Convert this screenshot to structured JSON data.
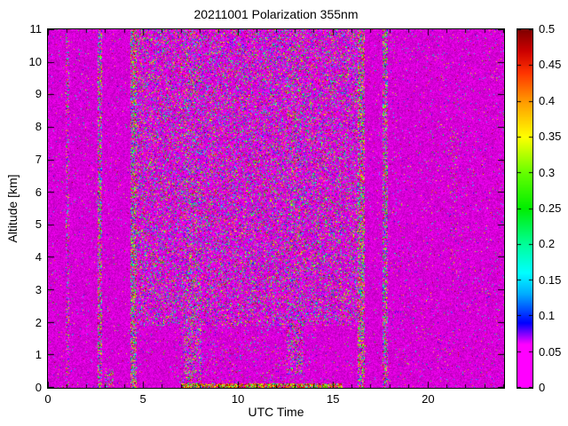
{
  "chart_data": {
    "type": "heatmap",
    "title": "20211001 Polarization 355nm",
    "xlabel": "UTC Time",
    "ylabel": "Altitude [km]",
    "xlim": [
      0,
      24
    ],
    "ylim": [
      0,
      11
    ],
    "xticks": [
      0,
      5,
      10,
      15,
      20
    ],
    "xminor_step": 1,
    "yticks": [
      0,
      1,
      2,
      3,
      4,
      5,
      6,
      7,
      8,
      9,
      10,
      11
    ],
    "colorbar": {
      "min": 0,
      "max": 0.5,
      "ticks": [
        0,
        0.05,
        0.1,
        0.15,
        0.2,
        0.25,
        0.3,
        0.35,
        0.4,
        0.45,
        0.5
      ],
      "tick_labels": [
        "0",
        "0.05",
        "0.1",
        "0.15",
        "0.2",
        "0.25",
        "0.3",
        "0.35",
        "0.4",
        "0.45",
        "0.5"
      ]
    },
    "colormap_stops": [
      [
        0.0,
        "#ff00ff"
      ],
      [
        0.06,
        "#ff00ff"
      ],
      [
        0.09,
        "#0000ff"
      ],
      [
        0.13,
        "#00aaff"
      ],
      [
        0.16,
        "#00ffff"
      ],
      [
        0.2,
        "#00ff99"
      ],
      [
        0.25,
        "#00ee00"
      ],
      [
        0.3,
        "#66ff00"
      ],
      [
        0.35,
        "#ffff00"
      ],
      [
        0.4,
        "#ff9900"
      ],
      [
        0.44,
        "#ff3300"
      ],
      [
        0.47,
        "#cc0000"
      ],
      [
        0.5,
        "#800000"
      ]
    ],
    "background_value": 0,
    "seed": 20211001,
    "noise_regions": [
      {
        "x0": 0.0,
        "x1": 24.0,
        "y0": 0.0,
        "y1": 11.0,
        "density": 0.035,
        "vpow": 3.0
      },
      {
        "x0": 18.0,
        "x1": 24.0,
        "y0": 0.0,
        "y1": 11.0,
        "density": 0.05,
        "vpow": 2.6
      },
      {
        "x0": 4.65,
        "x1": 16.35,
        "y0": 1.9,
        "y1": 11.0,
        "density": 0.33,
        "vpow": 1.6
      },
      {
        "x0": 6.6,
        "x1": 14.2,
        "y0": 0.0,
        "y1": 1.9,
        "density": 0.09,
        "vpow": 2.0
      },
      {
        "x0": 4.33,
        "x1": 4.66,
        "y0": 0.0,
        "y1": 11.0,
        "density": 0.62,
        "vpow": 1.1
      },
      {
        "x0": 16.3,
        "x1": 16.68,
        "y0": 0.0,
        "y1": 11.0,
        "density": 0.62,
        "vpow": 1.1
      },
      {
        "x0": 2.58,
        "x1": 2.85,
        "y0": 0.0,
        "y1": 11.0,
        "density": 0.55,
        "vpow": 1.2
      },
      {
        "x0": 17.6,
        "x1": 17.88,
        "y0": 0.0,
        "y1": 11.0,
        "density": 0.55,
        "vpow": 1.2
      },
      {
        "x0": 7.15,
        "x1": 8.05,
        "y0": 0.0,
        "y1": 11.0,
        "density": 0.45,
        "vpow": 1.7
      },
      {
        "x0": 12.55,
        "x1": 13.45,
        "y0": 0.4,
        "y1": 11.0,
        "density": 0.42,
        "vpow": 1.7
      },
      {
        "x0": 0.92,
        "x1": 1.12,
        "y0": 0.0,
        "y1": 11.0,
        "density": 0.3,
        "vpow": 1.5
      },
      {
        "x0": 21.15,
        "x1": 21.55,
        "y0": 3.5,
        "y1": 8.0,
        "density": 0.12,
        "vpow": 1.2
      },
      {
        "x0": 2.95,
        "x1": 3.45,
        "y0": 0.0,
        "y1": 0.6,
        "density": 0.35,
        "vpow": 0.8
      },
      {
        "x0": 7.0,
        "x1": 15.5,
        "y0": 0.0,
        "y1": 0.13,
        "density": 0.8,
        "vpow": 0.4
      }
    ]
  }
}
